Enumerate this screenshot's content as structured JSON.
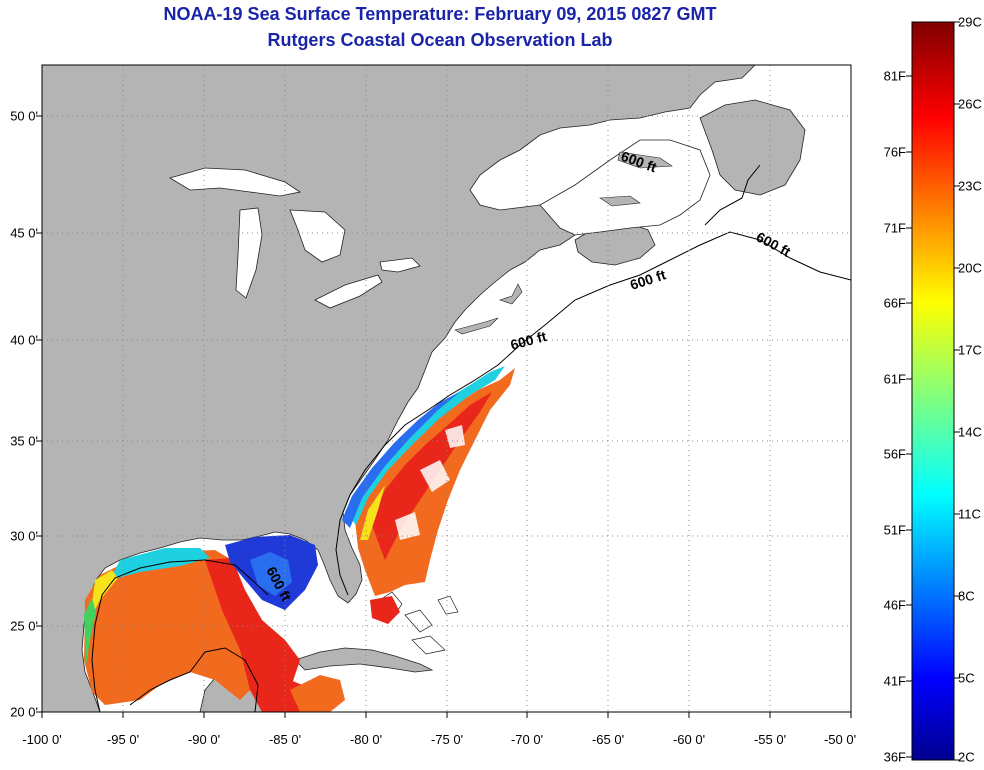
{
  "title_line1": "NOAA-19 Sea Surface Temperature:  February 09, 2015 0827 GMT",
  "title_line2": "Rutgers Coastal Ocean Observation Lab",
  "map": {
    "lon_range": [
      -100,
      -50
    ],
    "lat_range": [
      20,
      52.5
    ],
    "grid": true,
    "x_ticks": [
      "-100 0'",
      "-95 0'",
      "-90 0'",
      "-85 0'",
      "-80 0'",
      "-75 0'",
      "-70 0'",
      "-65 0'",
      "-60 0'",
      "-55 0'",
      "-50 0'"
    ],
    "y_ticks": [
      "20 0'",
      "25 0'",
      "30 0'",
      "35 0'",
      "40 0'",
      "45 0'",
      "50 0'"
    ],
    "contour_labels": [
      "600 ft",
      "600 ft",
      "600 ft",
      "600 ft",
      "600 ft"
    ],
    "land_color": "#b4b4b4",
    "ocean_nodata_color": "#ffffff"
  },
  "colorbar": {
    "celsius_labels": [
      "29C",
      "26C",
      "23C",
      "20C",
      "17C",
      "14C",
      "11C",
      "8C",
      "5C",
      "2C"
    ],
    "fahrenheit_labels": [
      "81F",
      "76F",
      "71F",
      "66F",
      "61F",
      "56F",
      "51F",
      "46F",
      "41F",
      "36F"
    ],
    "range_c": [
      2,
      29
    ],
    "colormap": "jet"
  }
}
